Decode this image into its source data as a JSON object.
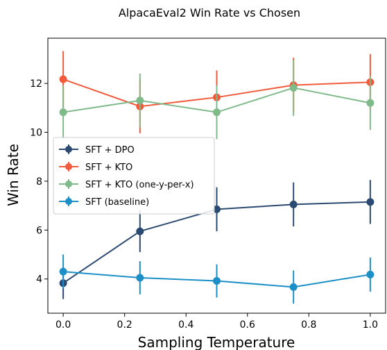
{
  "chart_data": {
    "type": "line",
    "title": "AlpacaEval2 Win Rate vs Chosen",
    "xlabel": "Sampling Temperature",
    "ylabel": "Win Rate",
    "x": [
      0.0,
      0.25,
      0.5,
      0.75,
      1.0
    ],
    "xlim": [
      -0.05,
      1.05
    ],
    "ylim": [
      2.6,
      13.85
    ],
    "xticks": [
      "0.0",
      "0.2",
      "0.4",
      "0.6",
      "0.8",
      "1.0"
    ],
    "yticks": [
      "4",
      "6",
      "8",
      "10",
      "12"
    ],
    "grid": false,
    "legend_position": "center-left",
    "series": [
      {
        "name": "SFT + DPO",
        "color": "#2b4a72",
        "values": [
          3.83,
          5.95,
          6.85,
          7.05,
          7.15
        ],
        "error": [
          0.65,
          0.85,
          0.9,
          0.9,
          0.9
        ]
      },
      {
        "name": "SFT + KTO",
        "color": "#f15a3a",
        "values": [
          12.17,
          11.06,
          11.43,
          11.93,
          12.05
        ],
        "error": [
          1.15,
          1.1,
          1.1,
          1.12,
          1.15
        ]
      },
      {
        "name": "SFT + KTO (one-y-per-x)",
        "color": "#7fba8a",
        "values": [
          10.82,
          11.3,
          10.82,
          11.82,
          11.2
        ],
        "error": [
          1.1,
          1.1,
          1.1,
          1.15,
          1.1
        ]
      },
      {
        "name": "SFT (baseline)",
        "color": "#1b8fc6",
        "values": [
          4.3,
          4.05,
          3.92,
          3.67,
          4.18
        ],
        "error": [
          0.7,
          0.68,
          0.68,
          0.68,
          0.7
        ]
      }
    ]
  }
}
